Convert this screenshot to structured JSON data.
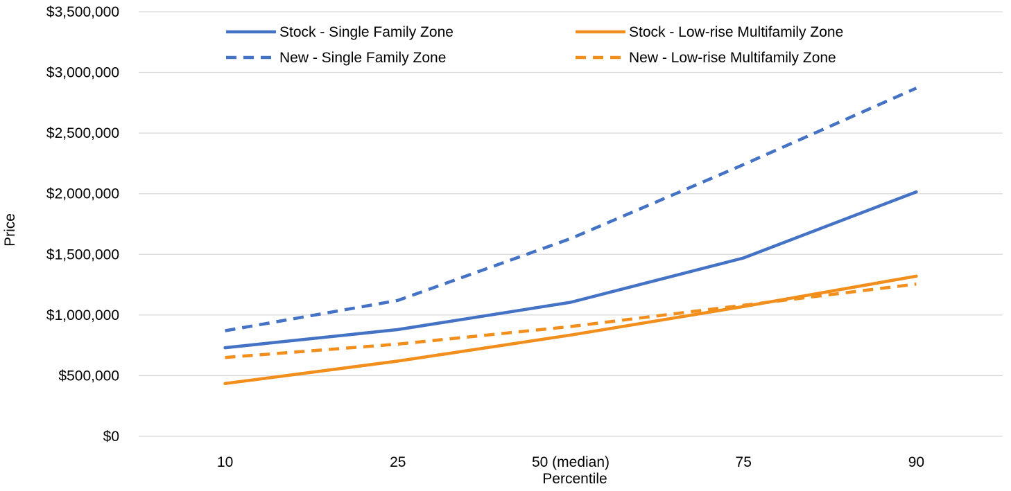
{
  "chart_data": {
    "type": "line",
    "title": "",
    "xlabel": "Percentile",
    "ylabel": "Price",
    "categories": [
      "10",
      "25",
      "50 (median)",
      "75",
      "90"
    ],
    "ylim": [
      0,
      3500000
    ],
    "yticks": [
      0,
      500000,
      1000000,
      1500000,
      2000000,
      2500000,
      3000000,
      3500000
    ],
    "ytick_labels": [
      "$0",
      "$500,000",
      "$1,000,000",
      "$1,500,000",
      "$2,000,000",
      "$2,500,000",
      "$3,000,000",
      "$3,500,000"
    ],
    "grid": true,
    "legend_position": "top",
    "series": [
      {
        "name": "Stock - Single Family Zone",
        "values": [
          730000,
          880000,
          1105000,
          1470000,
          2015000
        ],
        "color": "#4472C4",
        "dash": false
      },
      {
        "name": "Stock - Low-rise Multifamily Zone",
        "values": [
          435000,
          620000,
          835000,
          1070000,
          1320000
        ],
        "color": "#F28E1C",
        "dash": false
      },
      {
        "name": "New - Single Family Zone",
        "values": [
          870000,
          1120000,
          1630000,
          2240000,
          2870000
        ],
        "color": "#4472C4",
        "dash": true
      },
      {
        "name": "New - Low-rise Multifamily Zone",
        "values": [
          650000,
          760000,
          905000,
          1080000,
          1255000
        ],
        "color": "#F28E1C",
        "dash": true
      }
    ]
  }
}
